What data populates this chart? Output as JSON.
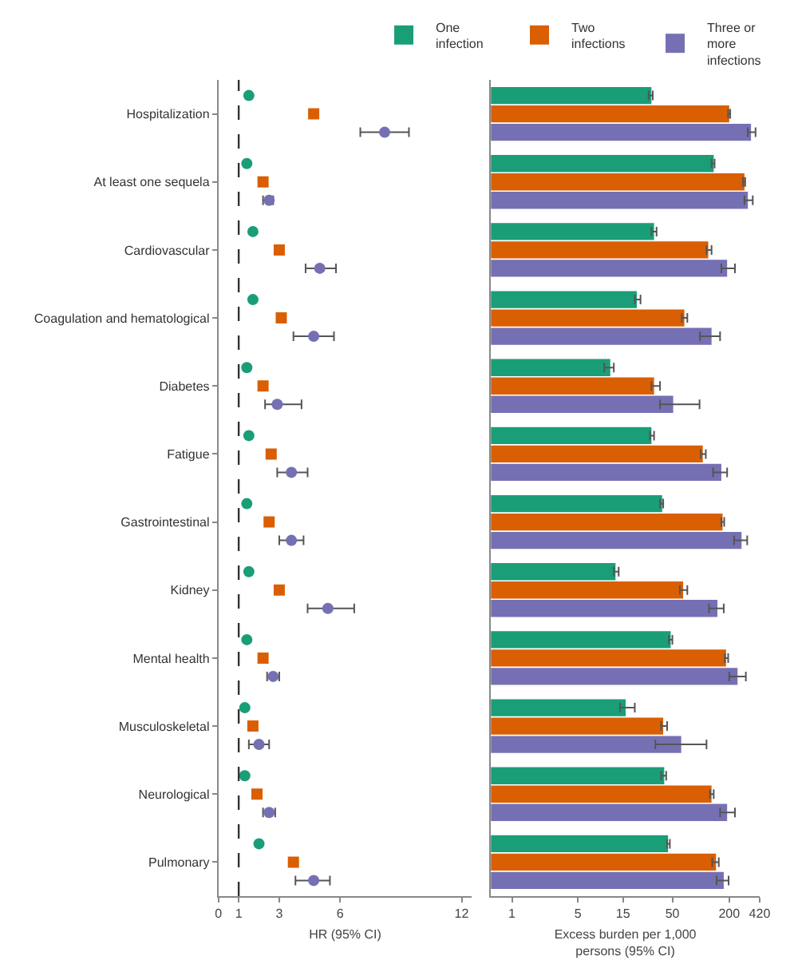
{
  "chart_data": [
    {
      "type": "scatter",
      "orientation": "horizontal",
      "xlabel": "HR (95% CI)",
      "xlim": [
        0,
        12.5
      ],
      "xticks": [
        0,
        1,
        3,
        6,
        12
      ],
      "categories": [
        "Hospitalization",
        "At least one sequela",
        "Cardiovascular",
        "Coagulation and hematological",
        "Diabetes",
        "Fatigue",
        "Gastrointestinal",
        "Kidney",
        "Mental health",
        "Musculoskeletal",
        "Neurological",
        "Pulmonary"
      ],
      "ref_lines": [
        {
          "axis": "x",
          "value": 1,
          "line_style": "dashed",
          "color": "#333333"
        }
      ],
      "series": [
        {
          "color": "#1a9e77",
          "marker": "circle",
          "values": [
            1.5,
            1.4,
            1.7,
            1.7,
            1.4,
            1.5,
            1.4,
            1.5,
            1.4,
            1.3,
            1.3,
            2.0
          ]
        },
        {
          "color": "#d95f02",
          "marker": "square",
          "values": [
            4.7,
            2.2,
            3.0,
            3.1,
            2.2,
            2.6,
            2.5,
            3.0,
            2.2,
            1.7,
            1.9,
            3.7
          ]
        },
        {
          "color": "#7570b3",
          "marker": "circle",
          "values": [
            8.2,
            2.5,
            5.0,
            4.7,
            2.9,
            3.6,
            3.6,
            5.4,
            2.7,
            2.0,
            2.5,
            4.7
          ],
          "errors": [
            [
              7.0,
              9.4
            ],
            [
              2.2,
              2.7
            ],
            [
              4.3,
              5.8
            ],
            [
              3.7,
              5.7
            ],
            [
              2.3,
              4.1
            ],
            [
              2.9,
              4.4
            ],
            [
              3.0,
              4.2
            ],
            [
              4.4,
              6.7
            ],
            [
              2.4,
              3.0
            ],
            [
              1.5,
              2.5
            ],
            [
              2.2,
              2.8
            ],
            [
              3.8,
              5.5
            ]
          ]
        }
      ]
    },
    {
      "type": "bar",
      "orientation": "horizontal",
      "log": "x",
      "xlabel": "Excess burden per 1,000 persons (95% CI)",
      "xlim": [
        0.6,
        420
      ],
      "xticks": [
        1,
        5,
        15,
        50,
        200,
        420
      ],
      "legend": "top",
      "categories": [
        null,
        null,
        null,
        null,
        null,
        null,
        null,
        null,
        null,
        null,
        null,
        null
      ],
      "series": [
        {
          "name": "One infection",
          "color": "#1a9e77",
          "values": [
            30,
            137,
            32,
            21,
            11,
            30,
            39,
            12.5,
            48,
            16,
            41,
            45
          ],
          "errors": [
            [
              28,
              31
            ],
            [
              130,
              140
            ],
            [
              30,
              34
            ],
            [
              20,
              23
            ],
            [
              9.5,
              12
            ],
            [
              29,
              32
            ],
            [
              37,
              40
            ],
            [
              12,
              13.5
            ],
            [
              46,
              50
            ],
            [
              14,
              20
            ],
            [
              38,
              43
            ],
            [
              44,
              47
            ]
          ]
        },
        {
          "name": "Two infections",
          "color": "#d95f02",
          "values": [
            200,
            290,
            120,
            67,
            32,
            105,
            170,
            65,
            185,
            40,
            130,
            145
          ],
          "errors": [
            [
              195,
              205
            ],
            [
              280,
              295
            ],
            [
              115,
              130
            ],
            [
              63,
              72
            ],
            [
              30,
              37
            ],
            [
              100,
              113
            ],
            [
              165,
              177
            ],
            [
              60,
              72
            ],
            [
              180,
              195
            ],
            [
              38,
              44
            ],
            [
              125,
              137
            ],
            [
              132,
              155
            ]
          ]
        },
        {
          "name": "Three or more infections",
          "color": "#7570b3",
          "values": [
            340,
            315,
            190,
            130,
            51,
            165,
            270,
            150,
            245,
            62,
            190,
            175
          ],
          "errors": [
            [
              315,
              380
            ],
            [
              290,
              355
            ],
            [
              165,
              230
            ],
            [
              98,
              160
            ],
            [
              37,
              97
            ],
            [
              135,
              190
            ],
            [
              225,
              310
            ],
            [
              122,
              175
            ],
            [
              200,
              300
            ],
            [
              33,
              115
            ],
            [
              160,
              230
            ],
            [
              147,
              197
            ]
          ]
        }
      ]
    }
  ]
}
